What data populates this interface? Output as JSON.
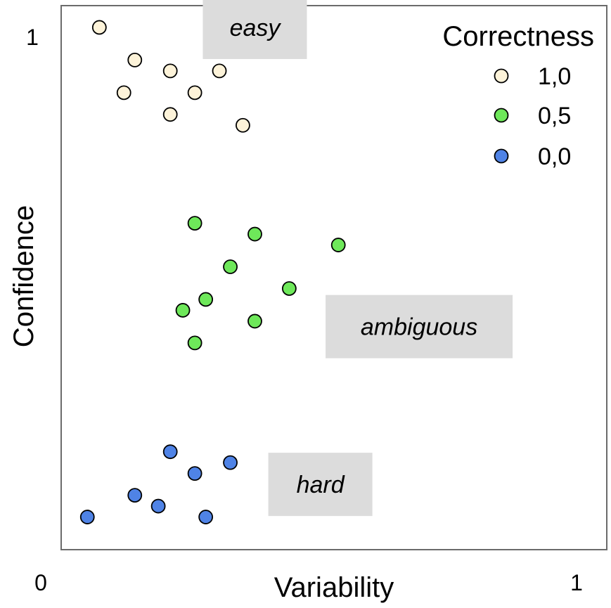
{
  "chart_data": {
    "type": "scatter",
    "title": "",
    "xlabel": "Variability",
    "ylabel": "Confidence",
    "xlim": [
      0,
      1
    ],
    "ylim": [
      0,
      1
    ],
    "x_ticks": [
      "0",
      "1"
    ],
    "y_ticks": [
      "0",
      "1"
    ],
    "legend": {
      "title": "Correctness",
      "position": "top-right",
      "entries": [
        "1,0",
        "0,5",
        "0,0"
      ]
    },
    "series": [
      {
        "name": "1,0",
        "color": "#fdf3d9",
        "points": [
          {
            "x": 0.07,
            "y": 0.96
          },
          {
            "x": 0.135,
            "y": 0.9
          },
          {
            "x": 0.2,
            "y": 0.88
          },
          {
            "x": 0.29,
            "y": 0.88
          },
          {
            "x": 0.115,
            "y": 0.84
          },
          {
            "x": 0.245,
            "y": 0.84
          },
          {
            "x": 0.2,
            "y": 0.8
          },
          {
            "x": 0.333,
            "y": 0.78
          }
        ]
      },
      {
        "name": "0,5",
        "color": "#6ee85a",
        "points": [
          {
            "x": 0.245,
            "y": 0.6
          },
          {
            "x": 0.355,
            "y": 0.58
          },
          {
            "x": 0.508,
            "y": 0.56
          },
          {
            "x": 0.31,
            "y": 0.52
          },
          {
            "x": 0.418,
            "y": 0.48
          },
          {
            "x": 0.265,
            "y": 0.46
          },
          {
            "x": 0.223,
            "y": 0.44
          },
          {
            "x": 0.355,
            "y": 0.42
          },
          {
            "x": 0.245,
            "y": 0.38
          }
        ]
      },
      {
        "name": "0,0",
        "color": "#4f83e6",
        "points": [
          {
            "x": 0.2,
            "y": 0.18
          },
          {
            "x": 0.31,
            "y": 0.16
          },
          {
            "x": 0.245,
            "y": 0.14
          },
          {
            "x": 0.135,
            "y": 0.1
          },
          {
            "x": 0.178,
            "y": 0.08
          },
          {
            "x": 0.048,
            "y": 0.06
          },
          {
            "x": 0.265,
            "y": 0.06
          }
        ]
      }
    ],
    "annotations": [
      {
        "text": "easy",
        "x": 0.355,
        "y": 0.96
      },
      {
        "text": "ambiguous",
        "x": 0.656,
        "y": 0.41
      },
      {
        "text": "hard",
        "x": 0.475,
        "y": 0.12
      }
    ]
  }
}
